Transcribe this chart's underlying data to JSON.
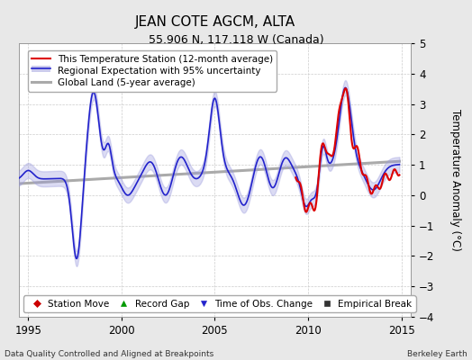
{
  "title": "JEAN COTE AGCM, ALTA",
  "subtitle": "55.906 N, 117.118 W (Canada)",
  "xlabel_left": "Data Quality Controlled and Aligned at Breakpoints",
  "xlabel_right": "Berkeley Earth",
  "ylabel": "Temperature Anomaly (°C)",
  "xlim": [
    1994.5,
    2015.5
  ],
  "ylim": [
    -4,
    5
  ],
  "yticks": [
    -4,
    -3,
    -2,
    -1,
    0,
    1,
    2,
    3,
    4,
    5
  ],
  "xticks": [
    1995,
    2000,
    2005,
    2010,
    2015
  ],
  "background_color": "#e8e8e8",
  "plot_background": "#ffffff",
  "grid_color": "#cccccc",
  "title_fontsize": 11,
  "subtitle_fontsize": 9,
  "tick_fontsize": 8.5,
  "legend_fontsize": 7.5,
  "marker_legend_fontsize": 7.5,
  "legend_entries": [
    {
      "label": "This Temperature Station (12-month average)",
      "color": "#dd0000",
      "lw": 1.5
    },
    {
      "label": "Regional Expectation with 95% uncertainty",
      "color": "#2222cc",
      "lw": 1.2
    },
    {
      "label": "Global Land (5-year average)",
      "color": "#aaaaaa",
      "lw": 2.0
    }
  ],
  "marker_legend": [
    {
      "marker": "D",
      "color": "#cc0000",
      "label": "Station Move"
    },
    {
      "marker": "^",
      "color": "#009900",
      "label": "Record Gap"
    },
    {
      "marker": "v",
      "color": "#2222cc",
      "label": "Time of Obs. Change"
    },
    {
      "marker": "s",
      "color": "#333333",
      "label": "Empirical Break"
    }
  ]
}
